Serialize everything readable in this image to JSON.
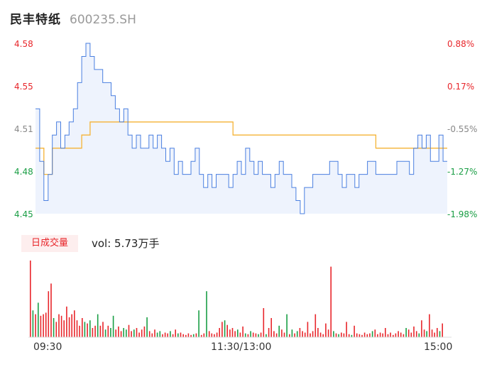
{
  "header": {
    "name": "民丰特纸",
    "code": "600235.SH"
  },
  "price_axis": {
    "left": [
      {
        "label": "4.58",
        "color": "red"
      },
      {
        "label": "4.55",
        "color": "red"
      },
      {
        "label": "4.51",
        "color": "gray"
      },
      {
        "label": "4.48",
        "color": "green"
      },
      {
        "label": "4.45",
        "color": "green"
      }
    ],
    "right": [
      {
        "label": "0.88%",
        "color": "red"
      },
      {
        "label": "0.17%",
        "color": "red"
      },
      {
        "label": "-0.55%",
        "color": "gray"
      },
      {
        "label": "-1.27%",
        "color": "green"
      },
      {
        "label": "-1.98%",
        "color": "green"
      }
    ]
  },
  "volume_panel": {
    "badge": "日成交量",
    "vol_label": "vol: 5.73万手"
  },
  "time_axis": [
    "09:30",
    "11:30/13:00",
    "15:00"
  ],
  "colors": {
    "price_line": "#4a7fe0",
    "avg_line": "#f5b335",
    "up": "#e8262b",
    "down": "#1a9e45",
    "area_fill": "#eef3fd"
  },
  "chart_data": {
    "type": "line",
    "ylim": [
      4.45,
      4.58
    ],
    "y2lim": [
      -1.98,
      0.88
    ],
    "price_series": [
      [
        0,
        4.53
      ],
      [
        5,
        4.49
      ],
      [
        10,
        4.46
      ],
      [
        15,
        4.48
      ],
      [
        20,
        4.51
      ],
      [
        25,
        4.52
      ],
      [
        30,
        4.5
      ],
      [
        35,
        4.51
      ],
      [
        40,
        4.52
      ],
      [
        45,
        4.53
      ],
      [
        50,
        4.55
      ],
      [
        55,
        4.57
      ],
      [
        60,
        4.58
      ],
      [
        65,
        4.57
      ],
      [
        70,
        4.56
      ],
      [
        75,
        4.56
      ],
      [
        80,
        4.55
      ],
      [
        85,
        4.55
      ],
      [
        90,
        4.54
      ],
      [
        95,
        4.53
      ],
      [
        100,
        4.52
      ],
      [
        105,
        4.53
      ],
      [
        110,
        4.51
      ],
      [
        115,
        4.5
      ],
      [
        120,
        4.51
      ],
      [
        125,
        4.5
      ],
      [
        130,
        4.5
      ],
      [
        135,
        4.51
      ],
      [
        140,
        4.5
      ],
      [
        145,
        4.51
      ],
      [
        150,
        4.5
      ],
      [
        155,
        4.49
      ],
      [
        160,
        4.5
      ],
      [
        165,
        4.48
      ],
      [
        170,
        4.49
      ],
      [
        175,
        4.48
      ],
      [
        180,
        4.48
      ],
      [
        185,
        4.49
      ],
      [
        190,
        4.5
      ],
      [
        195,
        4.48
      ],
      [
        200,
        4.47
      ],
      [
        205,
        4.48
      ],
      [
        210,
        4.47
      ],
      [
        215,
        4.48
      ],
      [
        220,
        4.48
      ],
      [
        225,
        4.48
      ],
      [
        230,
        4.47
      ],
      [
        235,
        4.48
      ],
      [
        240,
        4.49
      ],
      [
        245,
        4.48
      ],
      [
        250,
        4.5
      ],
      [
        255,
        4.49
      ],
      [
        260,
        4.48
      ],
      [
        265,
        4.49
      ],
      [
        270,
        4.48
      ],
      [
        275,
        4.48
      ],
      [
        280,
        4.47
      ],
      [
        285,
        4.48
      ],
      [
        290,
        4.49
      ],
      [
        295,
        4.48
      ],
      [
        300,
        4.48
      ],
      [
        305,
        4.47
      ],
      [
        310,
        4.46
      ],
      [
        315,
        4.45
      ],
      [
        320,
        4.47
      ],
      [
        325,
        4.47
      ],
      [
        330,
        4.48
      ],
      [
        335,
        4.48
      ],
      [
        340,
        4.48
      ],
      [
        345,
        4.48
      ],
      [
        350,
        4.49
      ],
      [
        355,
        4.49
      ],
      [
        360,
        4.48
      ],
      [
        365,
        4.47
      ],
      [
        370,
        4.48
      ],
      [
        375,
        4.48
      ],
      [
        380,
        4.47
      ],
      [
        385,
        4.48
      ],
      [
        390,
        4.48
      ],
      [
        395,
        4.49
      ],
      [
        400,
        4.49
      ],
      [
        405,
        4.48
      ],
      [
        410,
        4.48
      ],
      [
        415,
        4.48
      ],
      [
        420,
        4.48
      ],
      [
        425,
        4.48
      ],
      [
        430,
        4.49
      ],
      [
        435,
        4.49
      ],
      [
        440,
        4.49
      ],
      [
        445,
        4.48
      ],
      [
        450,
        4.5
      ],
      [
        455,
        4.51
      ],
      [
        460,
        4.5
      ],
      [
        465,
        4.51
      ],
      [
        470,
        4.49
      ],
      [
        475,
        4.49
      ],
      [
        480,
        4.51
      ],
      [
        485,
        4.49
      ],
      [
        490,
        4.49
      ]
    ],
    "avg_series": [
      [
        0,
        4.5
      ],
      [
        10,
        4.48
      ],
      [
        20,
        4.5
      ],
      [
        40,
        4.5
      ],
      [
        55,
        4.51
      ],
      [
        65,
        4.52
      ],
      [
        100,
        4.52
      ],
      [
        200,
        4.52
      ],
      [
        230,
        4.52
      ],
      [
        235,
        4.51
      ],
      [
        300,
        4.51
      ],
      [
        400,
        4.51
      ],
      [
        405,
        4.5
      ],
      [
        490,
        4.5
      ]
    ],
    "volume_ratio": [
      1.0,
      0.35,
      0.3,
      0.45,
      0.28,
      0.3,
      0.32,
      0.6,
      0.7,
      0.25,
      0.2,
      0.3,
      0.28,
      0.22,
      0.4,
      0.26,
      0.3,
      0.35,
      0.22,
      0.15,
      0.25,
      0.2,
      0.18,
      0.22,
      0.12,
      0.15,
      0.3,
      0.15,
      0.2,
      0.1,
      0.15,
      0.12,
      0.28,
      0.1,
      0.14,
      0.08,
      0.12,
      0.1,
      0.16,
      0.08,
      0.1,
      0.12,
      0.06,
      0.1,
      0.14,
      0.26,
      0.08,
      0.05,
      0.1,
      0.06,
      0.08,
      0.04,
      0.06,
      0.05,
      0.08,
      0.04,
      0.1,
      0.05,
      0.06,
      0.04,
      0.03,
      0.05,
      0.03,
      0.04,
      0.05,
      0.35,
      0.03,
      0.05,
      0.6,
      0.08,
      0.05,
      0.04,
      0.06,
      0.12,
      0.2,
      0.22,
      0.16,
      0.1,
      0.12,
      0.08,
      0.1,
      0.06,
      0.14,
      0.05,
      0.04,
      0.08,
      0.06,
      0.05,
      0.04,
      0.06,
      0.38,
      0.04,
      0.12,
      0.25,
      0.08,
      0.05,
      0.15,
      0.1,
      0.06,
      0.3,
      0.04,
      0.1,
      0.05,
      0.08,
      0.12,
      0.08,
      0.06,
      0.2,
      0.05,
      0.08,
      0.3,
      0.12,
      0.06,
      0.04,
      0.18,
      0.1,
      0.92,
      0.08,
      0.05,
      0.04,
      0.06,
      0.05,
      0.2,
      0.04,
      0.03,
      0.15,
      0.05,
      0.04,
      0.03,
      0.06,
      0.04,
      0.05,
      0.08,
      0.1,
      0.04,
      0.06,
      0.05,
      0.12,
      0.04,
      0.06,
      0.03,
      0.05,
      0.08,
      0.06,
      0.04,
      0.12,
      0.1,
      0.06,
      0.14,
      0.08,
      0.05,
      0.22,
      0.1,
      0.08,
      0.3,
      0.1,
      0.06,
      0.12,
      0.08,
      0.18
    ]
  }
}
